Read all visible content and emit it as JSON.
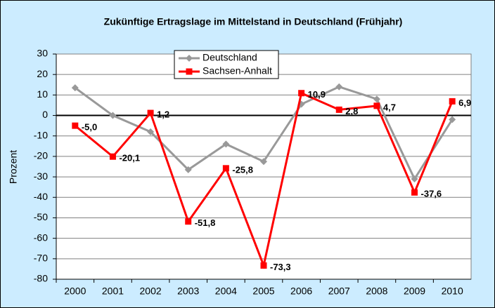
{
  "chart_data": {
    "type": "line",
    "title": "Zukünftige Ertragslage im Mittelstand in Deutschland (Frühjahr)",
    "y_label": "Prozent",
    "categories": [
      "2000",
      "2001",
      "2002",
      "2003",
      "2004",
      "2005",
      "2006",
      "2007",
      "2008",
      "2009",
      "2010"
    ],
    "series": [
      {
        "name": "Deutschland",
        "color": "#999999",
        "marker": "diamond",
        "values": [
          13.5,
          0,
          -8,
          -26.5,
          -14,
          -22.5,
          5.5,
          14,
          8,
          -31,
          -2
        ]
      },
      {
        "name": "Sachsen-Anhalt",
        "color": "#ff0000",
        "marker": "square",
        "values": [
          -5.0,
          -20.1,
          1.2,
          -51.8,
          -25.8,
          -73.3,
          10.9,
          2.8,
          4.7,
          -37.6,
          6.9
        ],
        "value_labels": [
          "-5,0",
          "-20,1",
          "1,2",
          "-51,8",
          "-25,8",
          "-73,3",
          "10,9",
          "2,8",
          "4,7",
          "-37,6",
          "6,9"
        ]
      }
    ],
    "ylim": [
      -80,
      30
    ],
    "yticks": [
      -80,
      -70,
      -60,
      -50,
      -40,
      -30,
      -20,
      -10,
      0,
      10,
      20,
      30
    ],
    "grid": true
  }
}
